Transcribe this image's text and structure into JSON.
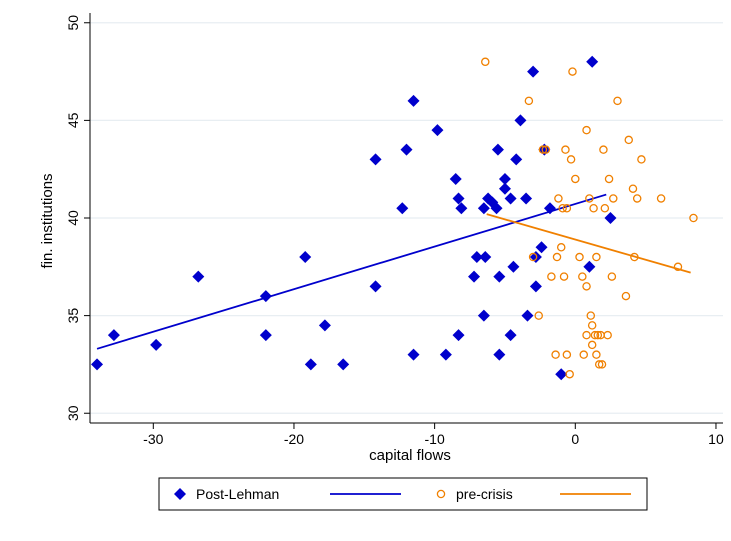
{
  "chart_data": {
    "type": "scatter",
    "title": "",
    "xlabel": "capital flows",
    "ylabel": "fin. institutions",
    "xlim": [
      -34.5,
      10.5
    ],
    "ylim": [
      29.5,
      50.5
    ],
    "x_ticks": [
      -30,
      -20,
      -10,
      0,
      10
    ],
    "y_ticks": [
      30,
      35,
      40,
      45,
      50
    ],
    "grid": "horizontal",
    "legend_position": "bottom",
    "series": [
      {
        "name": "Post-Lehman",
        "marker": "diamond",
        "color": "#0000cc",
        "points": [
          [
            -34,
            32.5
          ],
          [
            -32.8,
            34
          ],
          [
            -29.8,
            33.5
          ],
          [
            -26.8,
            37
          ],
          [
            -22,
            36
          ],
          [
            -22,
            34
          ],
          [
            -19.2,
            38
          ],
          [
            -18.8,
            32.5
          ],
          [
            -17.8,
            34.5
          ],
          [
            -16.5,
            32.5
          ],
          [
            -14.2,
            43
          ],
          [
            -14.2,
            36.5
          ],
          [
            -12.3,
            40.5
          ],
          [
            -12,
            43.5
          ],
          [
            -11.5,
            46
          ],
          [
            -11.5,
            33
          ],
          [
            -9.8,
            44.5
          ],
          [
            -9.2,
            33
          ],
          [
            -8.5,
            42
          ],
          [
            -8.3,
            41
          ],
          [
            -8.1,
            40.5
          ],
          [
            -8.3,
            34
          ],
          [
            -7.2,
            37
          ],
          [
            -7,
            38
          ],
          [
            -6.5,
            40.5
          ],
          [
            -6.4,
            38
          ],
          [
            -6.2,
            41
          ],
          [
            -6.5,
            35
          ],
          [
            -5.9,
            40.8
          ],
          [
            -5.6,
            40.5
          ],
          [
            -5.5,
            43.5
          ],
          [
            -5.4,
            37
          ],
          [
            -5.4,
            33
          ],
          [
            -5,
            42
          ],
          [
            -5,
            41.5
          ],
          [
            -4.6,
            41
          ],
          [
            -4.6,
            34
          ],
          [
            -4.4,
            37.5
          ],
          [
            -4.2,
            43
          ],
          [
            -3.9,
            45
          ],
          [
            -3.5,
            41
          ],
          [
            -3.4,
            35
          ],
          [
            -3,
            47.5
          ],
          [
            -2.8,
            38
          ],
          [
            -2.8,
            36.5
          ],
          [
            -2.4,
            38.5
          ],
          [
            -2.2,
            43.5
          ],
          [
            -1.8,
            40.5
          ],
          [
            -1,
            32
          ],
          [
            1,
            37.5
          ],
          [
            1.2,
            48
          ],
          [
            2.5,
            40
          ]
        ]
      },
      {
        "name": "Post-Lehman",
        "kind": "fit",
        "color": "#0000cc",
        "line": [
          [
            -34,
            33.3
          ],
          [
            2.2,
            41.2
          ]
        ]
      },
      {
        "name": "pre-crisis",
        "marker": "circle",
        "color": "#f08000",
        "points": [
          [
            -6.4,
            48
          ],
          [
            -3.3,
            46
          ],
          [
            -3,
            38
          ],
          [
            -2.6,
            35
          ],
          [
            -2.3,
            43.5
          ],
          [
            -2.1,
            43.5
          ],
          [
            -1.7,
            37
          ],
          [
            -1.4,
            33
          ],
          [
            -1.2,
            41
          ],
          [
            -1.3,
            38
          ],
          [
            -1,
            38.5
          ],
          [
            -0.9,
            40.5
          ],
          [
            -0.8,
            37
          ],
          [
            -0.7,
            43.5
          ],
          [
            -0.6,
            33
          ],
          [
            -0.6,
            40.5
          ],
          [
            -0.4,
            32
          ],
          [
            -0.3,
            43
          ],
          [
            -0.2,
            47.5
          ],
          [
            0,
            42
          ],
          [
            0.3,
            38
          ],
          [
            0.5,
            37
          ],
          [
            0.6,
            33
          ],
          [
            0.8,
            44.5
          ],
          [
            0.8,
            36.5
          ],
          [
            0.8,
            34
          ],
          [
            1,
            41
          ],
          [
            1.1,
            35
          ],
          [
            1.2,
            34.5
          ],
          [
            1.2,
            33.5
          ],
          [
            1.3,
            40.5
          ],
          [
            1.4,
            34
          ],
          [
            1.5,
            33
          ],
          [
            1.5,
            38
          ],
          [
            1.6,
            34
          ],
          [
            1.7,
            32.5
          ],
          [
            1.8,
            34
          ],
          [
            1.9,
            32.5
          ],
          [
            2,
            43.5
          ],
          [
            2.1,
            40.5
          ],
          [
            2.3,
            34
          ],
          [
            2.4,
            42
          ],
          [
            2.6,
            37
          ],
          [
            2.7,
            41
          ],
          [
            3,
            46
          ],
          [
            3.6,
            36
          ],
          [
            3.8,
            44
          ],
          [
            4.1,
            41.5
          ],
          [
            4.2,
            38
          ],
          [
            4.4,
            41
          ],
          [
            4.7,
            43
          ],
          [
            6.1,
            41
          ],
          [
            7.3,
            37.5
          ],
          [
            8.4,
            40
          ]
        ]
      },
      {
        "name": "pre-crisis",
        "kind": "fit",
        "color": "#f08000",
        "line": [
          [
            -6.3,
            40.2
          ],
          [
            8.2,
            37.2
          ]
        ]
      }
    ],
    "legend": [
      {
        "label": "Post-Lehman",
        "symbol": "diamond",
        "color": "#0000cc"
      },
      {
        "label": "",
        "symbol": "line",
        "color": "#0000cc"
      },
      {
        "label": "pre-crisis",
        "symbol": "circle",
        "color": "#f08000"
      },
      {
        "label": "",
        "symbol": "line",
        "color": "#f08000"
      }
    ]
  }
}
